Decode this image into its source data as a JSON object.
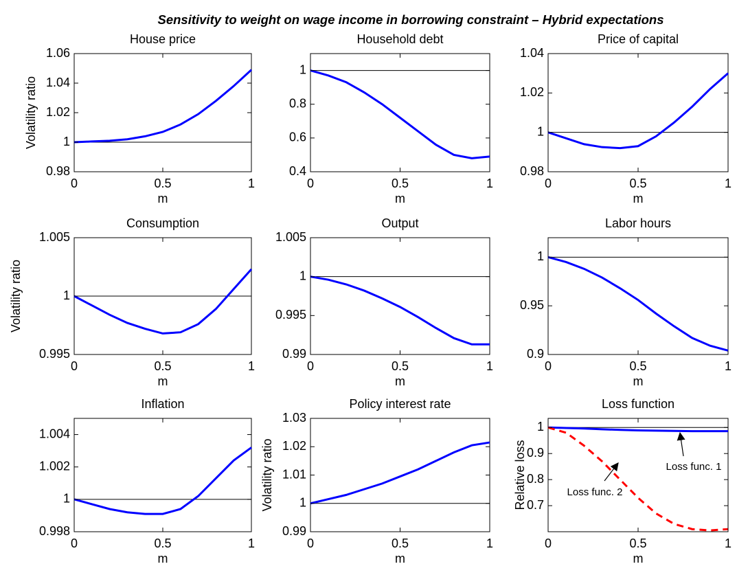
{
  "title": "Sensitivity to weight on wage income in borrowing constraint – Hybrid expectations",
  "chart_data": [
    {
      "type": "line",
      "title": "House price",
      "ylabel": "Volatility ratio",
      "xlabel": "m",
      "x": [
        0,
        0.1,
        0.2,
        0.3,
        0.4,
        0.5,
        0.6,
        0.7,
        0.8,
        0.9,
        1
      ],
      "series": [
        {
          "color": "#0000ff",
          "values": [
            1.0,
            1.0005,
            1.001,
            1.002,
            1.004,
            1.007,
            1.012,
            1.019,
            1.028,
            1.038,
            1.049
          ]
        }
      ],
      "reference_line": 1,
      "xlim": [
        0,
        1
      ],
      "xticks": [
        0,
        0.5,
        1
      ],
      "ylim": [
        0.98,
        1.06
      ],
      "yticks": [
        0.98,
        1,
        1.02,
        1.04,
        1.06
      ]
    },
    {
      "type": "line",
      "title": "Household debt",
      "xlabel": "m",
      "x": [
        0,
        0.1,
        0.2,
        0.3,
        0.4,
        0.5,
        0.6,
        0.7,
        0.8,
        0.9,
        1
      ],
      "series": [
        {
          "color": "#0000ff",
          "values": [
            1.0,
            0.97,
            0.93,
            0.87,
            0.8,
            0.72,
            0.64,
            0.56,
            0.5,
            0.48,
            0.49
          ]
        }
      ],
      "reference_line": 1,
      "xlim": [
        0,
        1
      ],
      "xticks": [
        0,
        0.5,
        1
      ],
      "ylim": [
        0.4,
        1.1
      ],
      "yticks": [
        0.4,
        0.6,
        0.8,
        1
      ]
    },
    {
      "type": "line",
      "title": "Price of capital",
      "xlabel": "m",
      "x": [
        0,
        0.1,
        0.2,
        0.3,
        0.4,
        0.5,
        0.6,
        0.7,
        0.8,
        0.9,
        1
      ],
      "series": [
        {
          "color": "#0000ff",
          "values": [
            1.0,
            0.997,
            0.994,
            0.9925,
            0.992,
            0.993,
            0.998,
            1.005,
            1.013,
            1.022,
            1.03
          ]
        }
      ],
      "reference_line": 1,
      "xlim": [
        0,
        1
      ],
      "xticks": [
        0,
        0.5,
        1
      ],
      "ylim": [
        0.98,
        1.04
      ],
      "yticks": [
        0.98,
        1,
        1.02,
        1.04
      ]
    },
    {
      "type": "line",
      "title": "Consumption",
      "ylabel": "Volatility ratio",
      "xlabel": "m",
      "x": [
        0,
        0.1,
        0.2,
        0.3,
        0.4,
        0.5,
        0.6,
        0.7,
        0.8,
        0.9,
        1
      ],
      "series": [
        {
          "color": "#0000ff",
          "values": [
            1.0,
            0.9992,
            0.9984,
            0.9977,
            0.9972,
            0.9968,
            0.9969,
            0.9976,
            0.9989,
            1.0006,
            1.0023
          ]
        }
      ],
      "reference_line": 1,
      "xlim": [
        0,
        1
      ],
      "xticks": [
        0,
        0.5,
        1
      ],
      "ylim": [
        0.995,
        1.005
      ],
      "yticks": [
        0.995,
        1,
        1.005
      ]
    },
    {
      "type": "line",
      "title": "Output",
      "xlabel": "m",
      "x": [
        0,
        0.1,
        0.2,
        0.3,
        0.4,
        0.5,
        0.6,
        0.7,
        0.8,
        0.9,
        1
      ],
      "series": [
        {
          "color": "#0000ff",
          "values": [
            1.0,
            0.9996,
            0.999,
            0.9982,
            0.9972,
            0.9961,
            0.9948,
            0.9934,
            0.9921,
            0.9913,
            0.9913
          ]
        }
      ],
      "reference_line": 1,
      "xlim": [
        0,
        1
      ],
      "xticks": [
        0,
        0.5,
        1
      ],
      "ylim": [
        0.99,
        1.005
      ],
      "yticks": [
        0.99,
        0.995,
        1,
        1.005
      ]
    },
    {
      "type": "line",
      "title": "Labor hours",
      "xlabel": "m",
      "x": [
        0,
        0.1,
        0.2,
        0.3,
        0.4,
        0.5,
        0.6,
        0.7,
        0.8,
        0.9,
        1
      ],
      "series": [
        {
          "color": "#0000ff",
          "values": [
            1.0,
            0.995,
            0.988,
            0.979,
            0.968,
            0.956,
            0.942,
            0.929,
            0.917,
            0.909,
            0.904
          ]
        }
      ],
      "reference_line": 1,
      "xlim": [
        0,
        1
      ],
      "xticks": [
        0,
        0.5,
        1
      ],
      "ylim": [
        0.9,
        1.02
      ],
      "yticks": [
        0.9,
        0.95,
        1
      ]
    },
    {
      "type": "line",
      "title": "Inflation",
      "xlabel": "m",
      "x": [
        0,
        0.1,
        0.2,
        0.3,
        0.4,
        0.5,
        0.6,
        0.7,
        0.8,
        0.9,
        1
      ],
      "series": [
        {
          "color": "#0000ff",
          "values": [
            1.0,
            0.9997,
            0.9994,
            0.9992,
            0.9991,
            0.9991,
            0.9994,
            1.0002,
            1.0013,
            1.0024,
            1.0032
          ]
        }
      ],
      "reference_line": 1,
      "xlim": [
        0,
        1
      ],
      "xticks": [
        0,
        0.5,
        1
      ],
      "ylim": [
        0.998,
        1.005
      ],
      "yticks": [
        0.998,
        1,
        1.002,
        1.004
      ]
    },
    {
      "type": "line",
      "title": "Policy interest rate",
      "ylabel": "Volatility ratio",
      "xlabel": "m",
      "x": [
        0,
        0.1,
        0.2,
        0.3,
        0.4,
        0.5,
        0.6,
        0.7,
        0.8,
        0.9,
        1
      ],
      "series": [
        {
          "color": "#0000ff",
          "values": [
            1.0,
            1.0015,
            1.003,
            1.005,
            1.007,
            1.0095,
            1.012,
            1.015,
            1.018,
            1.0205,
            1.0215
          ]
        }
      ],
      "reference_line": 1,
      "xlim": [
        0,
        1
      ],
      "xticks": [
        0,
        0.5,
        1
      ],
      "ylim": [
        0.99,
        1.03
      ],
      "yticks": [
        0.99,
        1,
        1.01,
        1.02,
        1.03
      ]
    },
    {
      "type": "line",
      "title": "Loss function",
      "ylabel": "Relative loss",
      "xlabel": "m",
      "x": [
        0,
        0.1,
        0.2,
        0.3,
        0.4,
        0.5,
        0.6,
        0.7,
        0.8,
        0.9,
        1
      ],
      "series": [
        {
          "name": "Loss func. 1",
          "color": "#0000ff",
          "values": [
            1.0,
            0.998,
            0.996,
            0.993,
            0.991,
            0.989,
            0.988,
            0.987,
            0.986,
            0.986,
            0.986
          ]
        },
        {
          "name": "Loss func. 2",
          "color": "#ff0000",
          "dashed": true,
          "values": [
            1.0,
            0.98,
            0.93,
            0.87,
            0.8,
            0.73,
            0.67,
            0.63,
            0.61,
            0.605,
            0.61
          ]
        }
      ],
      "reference_line": 1,
      "xlim": [
        0,
        1
      ],
      "xticks": [
        0,
        0.5,
        1
      ],
      "ylim": [
        0.6,
        1.035
      ],
      "yticks": [
        0.7,
        0.8,
        0.9,
        1
      ]
    }
  ]
}
